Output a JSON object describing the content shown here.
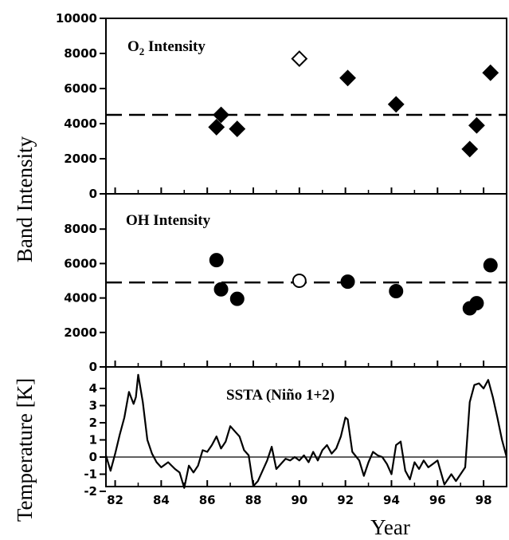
{
  "figure": {
    "shared_ylabel": "Band Intensity",
    "xlabel": "Year"
  },
  "chart_data": [
    {
      "type": "scatter",
      "title_main": "O",
      "title_sub": "2",
      "title_rest": " Intensity",
      "ylabel": "",
      "ylim": [
        0,
        10000
      ],
      "yticks": [
        0,
        2000,
        4000,
        6000,
        8000,
        10000
      ],
      "xlim": [
        81.6,
        99.0
      ],
      "reference_line": 4500,
      "marker": "diamond",
      "series": [
        {
          "filled": true,
          "points": [
            [
              86.4,
              3800
            ],
            [
              86.6,
              4500
            ],
            [
              87.3,
              3700
            ],
            [
              92.1,
              6600
            ],
            [
              94.2,
              5100
            ],
            [
              97.4,
              2550
            ],
            [
              97.7,
              3900
            ],
            [
              98.3,
              6900
            ]
          ]
        },
        {
          "filled": false,
          "points": [
            [
              90.0,
              7700
            ]
          ]
        }
      ]
    },
    {
      "type": "scatter",
      "title_main": "OH  Intensity",
      "ylabel": "",
      "ylim": [
        0,
        10000
      ],
      "yticks": [
        0,
        2000,
        4000,
        6000,
        8000
      ],
      "xlim": [
        81.6,
        99.0
      ],
      "reference_line": 4900,
      "marker": "circle",
      "series": [
        {
          "filled": true,
          "points": [
            [
              86.4,
              6200
            ],
            [
              86.6,
              4500
            ],
            [
              87.3,
              3950
            ],
            [
              92.1,
              4950
            ],
            [
              94.2,
              4400
            ],
            [
              97.4,
              3400
            ],
            [
              97.7,
              3700
            ],
            [
              98.3,
              5900
            ]
          ]
        },
        {
          "filled": false,
          "points": [
            [
              90.0,
              5000
            ]
          ]
        }
      ]
    },
    {
      "type": "line",
      "title_main": "SSTA (Niño 1+2)",
      "ylabel": "Temperature [K]",
      "ylim": [
        -2,
        5
      ],
      "yticks": [
        -2,
        -1,
        0,
        1,
        2,
        3,
        4
      ],
      "xlim": [
        81.6,
        99.0
      ],
      "xticks": [
        82,
        84,
        86,
        88,
        90,
        92,
        94,
        96,
        98
      ],
      "reference_line": 0,
      "x": [
        81.6,
        81.8,
        82.0,
        82.2,
        82.4,
        82.6,
        82.8,
        82.9,
        83.0,
        83.2,
        83.4,
        83.6,
        83.8,
        84.0,
        84.3,
        84.6,
        84.8,
        85.0,
        85.2,
        85.4,
        85.6,
        85.8,
        86.0,
        86.2,
        86.4,
        86.6,
        86.8,
        87.0,
        87.2,
        87.4,
        87.6,
        87.8,
        88.0,
        88.2,
        88.4,
        88.6,
        88.8,
        89.0,
        89.2,
        89.4,
        89.6,
        89.8,
        90.0,
        90.2,
        90.4,
        90.6,
        90.8,
        91.0,
        91.2,
        91.4,
        91.6,
        91.8,
        92.0,
        92.1,
        92.3,
        92.6,
        92.8,
        93.0,
        93.2,
        93.4,
        93.6,
        93.8,
        94.0,
        94.2,
        94.4,
        94.6,
        94.8,
        95.0,
        95.2,
        95.4,
        95.6,
        95.8,
        96.0,
        96.3,
        96.6,
        96.8,
        97.0,
        97.2,
        97.4,
        97.6,
        97.8,
        98.0,
        98.2,
        98.4,
        98.6,
        98.8,
        99.0
      ],
      "y": [
        0.1,
        -0.8,
        0.2,
        1.3,
        2.3,
        3.8,
        3.1,
        3.5,
        4.8,
        3.2,
        1.0,
        0.2,
        -0.3,
        -0.6,
        -0.3,
        -0.7,
        -0.9,
        -1.8,
        -0.5,
        -0.9,
        -0.5,
        0.4,
        0.3,
        0.7,
        1.2,
        0.5,
        0.9,
        1.8,
        1.5,
        1.2,
        0.4,
        0.1,
        -1.7,
        -1.4,
        -0.8,
        -0.2,
        0.6,
        -0.7,
        -0.4,
        -0.1,
        -0.2,
        0.0,
        -0.2,
        0.1,
        -0.3,
        0.3,
        -0.2,
        0.4,
        0.7,
        0.2,
        0.5,
        1.2,
        2.3,
        2.2,
        0.3,
        -0.2,
        -1.1,
        -0.3,
        0.3,
        0.1,
        0.0,
        -0.4,
        -1.0,
        0.7,
        0.9,
        -0.8,
        -1.3,
        -0.3,
        -0.7,
        -0.2,
        -0.6,
        -0.4,
        -0.2,
        -1.6,
        -1.0,
        -1.4,
        -1.0,
        -0.6,
        3.2,
        4.2,
        4.3,
        4.0,
        4.5,
        3.5,
        2.3,
        1.0,
        0.0
      ]
    }
  ]
}
